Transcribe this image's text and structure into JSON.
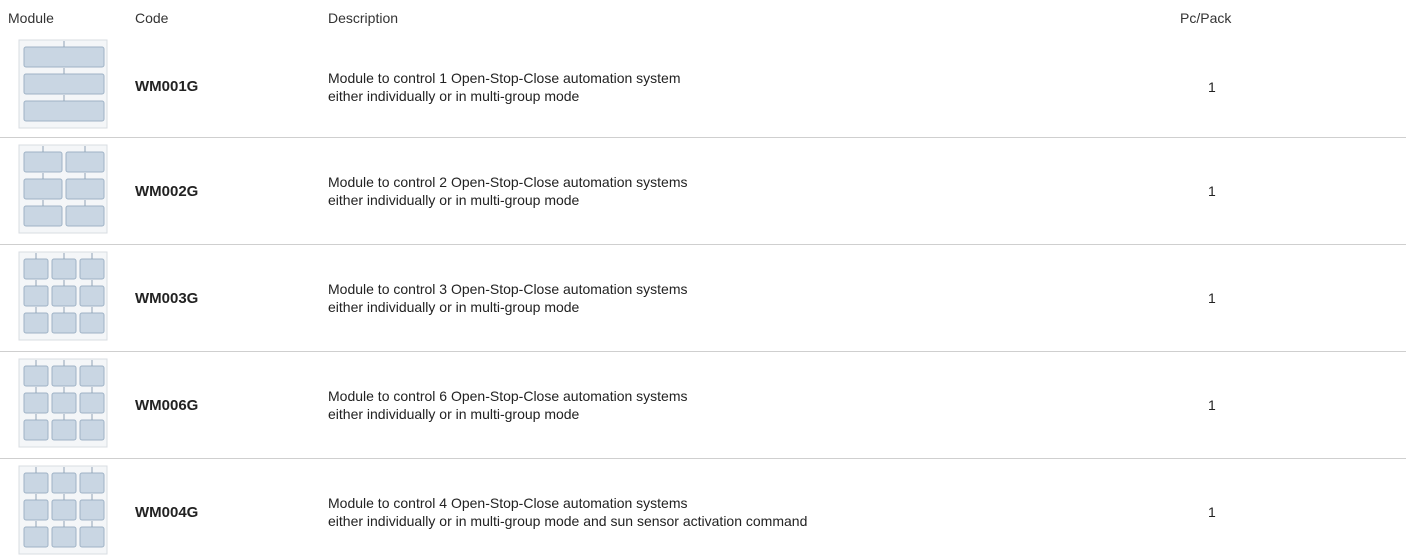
{
  "table": {
    "header": [
      "Module",
      "Code",
      "Description",
      "Pc/Pack"
    ],
    "rows": [
      {
        "code": "WM001G",
        "description": [
          "Module to control 1 Open-Stop-Close automation system",
          "either individually or in multi-group mode"
        ],
        "pcs": 1
      },
      {
        "code": "WM002G",
        "description": [
          "Module to control 2 Open-Stop-Close automation systems",
          "either individually or in multi-group mode"
        ],
        "pcs": 1
      },
      {
        "code": "WM003G",
        "description": [
          "Module to control 3 Open-Stop-Close automation systems",
          "either individually or in multi-group mode"
        ],
        "pcs": 1
      },
      {
        "code": "WM006G",
        "description": [
          "Module to control 6 Open-Stop-Close automation systems",
          "either individually or in multi-group mode"
        ],
        "pcs": 1
      },
      {
        "code": "WM004G",
        "description": [
          "Module to control 4 Open-Stop-Close automation systems",
          "either individually or in multi-group mode and sun sensor activation command"
        ],
        "pcs": 1
      }
    ]
  }
}
